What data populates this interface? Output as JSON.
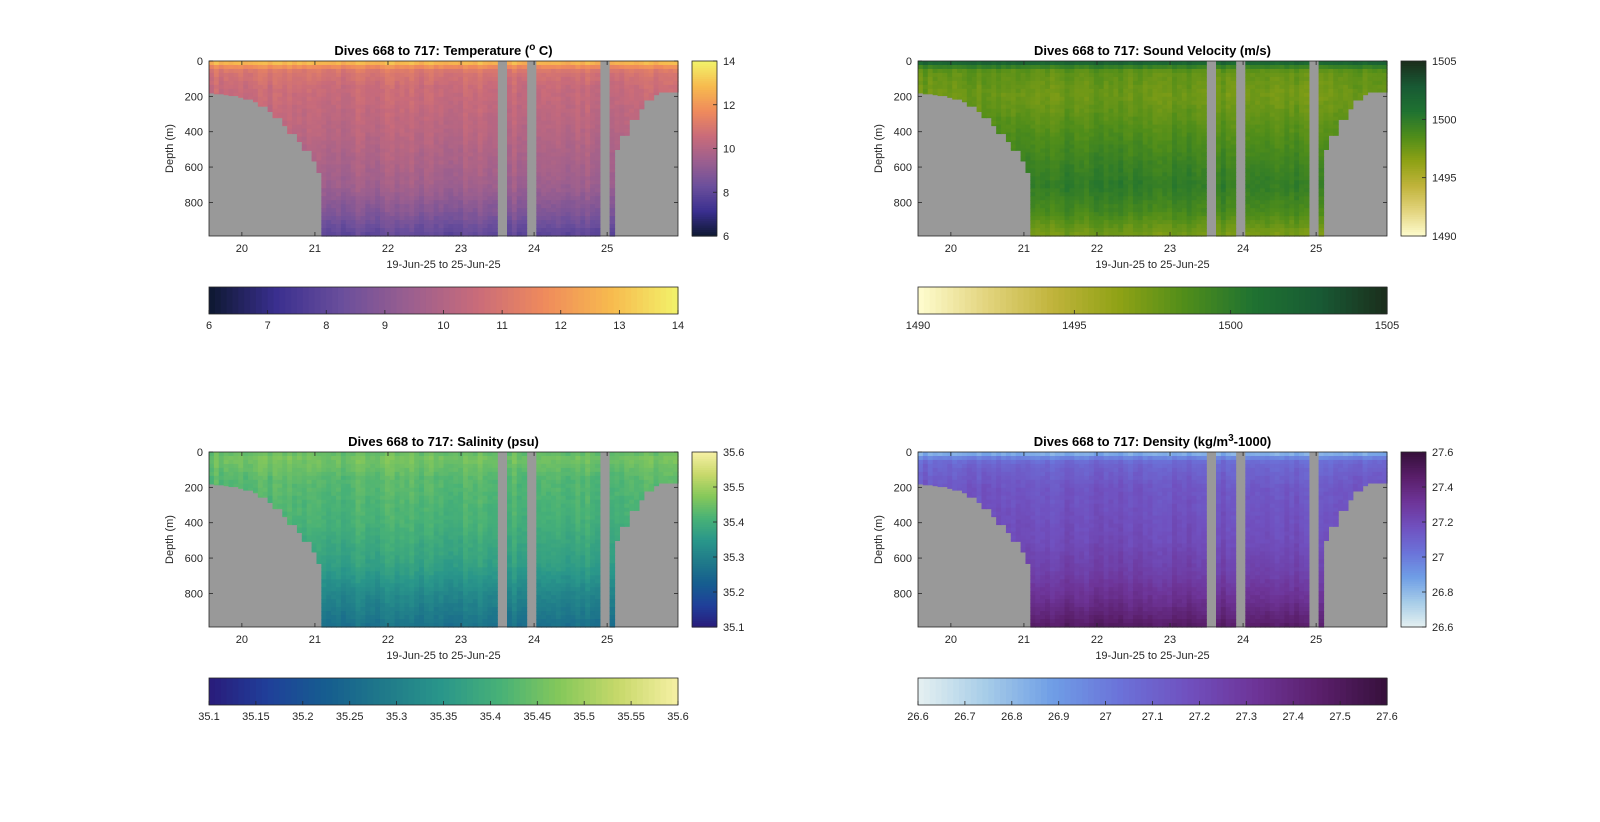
{
  "figure": {
    "background": "#ffffff",
    "land_color": "#999999",
    "plot_background": "#999999"
  },
  "chart_data": [
    {
      "type": "heatmap",
      "id": "temperature",
      "title_prefix": "Dives 668 to 717: Temperature (",
      "title_sup": "o",
      "title_suffix": " C)",
      "xlabel": "19-Jun-25 to 25-Jun-25",
      "ylabel": "Depth (m)",
      "x_ticks": [
        "20",
        "21",
        "22",
        "23",
        "24",
        "25"
      ],
      "x_tick_values": [
        20,
        21,
        22,
        23,
        24,
        25
      ],
      "xlim": [
        19.55,
        25.97
      ],
      "y_ticks": [
        "0",
        "200",
        "400",
        "600",
        "800"
      ],
      "y_tick_values": [
        0,
        200,
        400,
        600,
        800
      ],
      "ylim": [
        0,
        990
      ],
      "colormap": "thermal",
      "colormap_stops": [
        "#0d1830",
        "#3a2f8f",
        "#6b4f9c",
        "#9b5f8f",
        "#c96b7a",
        "#ef8a5c",
        "#f7ba4e",
        "#f2f26a"
      ],
      "vertical_colorbar": {
        "ticks": [
          "6",
          "8",
          "10",
          "12",
          "14"
        ],
        "tick_values": [
          6,
          8,
          10,
          12,
          14
        ],
        "range": [
          6,
          14
        ]
      },
      "horizontal_colorbar": {
        "ticks": [
          "6",
          "7",
          "8",
          "9",
          "10",
          "11",
          "12",
          "13",
          "14"
        ],
        "tick_values": [
          6,
          7,
          8,
          9,
          10,
          11,
          12,
          13,
          14
        ],
        "range": [
          6,
          14
        ]
      },
      "profile": [
        [
          0,
          13.5
        ],
        [
          20,
          12.2
        ],
        [
          60,
          11.0
        ],
        [
          150,
          10.6
        ],
        [
          400,
          10.2
        ],
        [
          700,
          9.6
        ],
        [
          850,
          8.9
        ],
        [
          990,
          8.0
        ]
      ]
    },
    {
      "type": "heatmap",
      "id": "sound_velocity",
      "title_prefix": "Dives 668 to 717: Sound Velocity (m/s)",
      "title_sup": "",
      "title_suffix": "",
      "xlabel": "19-Jun-25 to 25-Jun-25",
      "ylabel": "Depth (m)",
      "x_ticks": [
        "20",
        "21",
        "22",
        "23",
        "24",
        "25"
      ],
      "x_tick_values": [
        20,
        21,
        22,
        23,
        24,
        25
      ],
      "xlim": [
        19.55,
        25.97
      ],
      "y_ticks": [
        "0",
        "200",
        "400",
        "600",
        "800"
      ],
      "y_tick_values": [
        0,
        200,
        400,
        600,
        800
      ],
      "ylim": [
        0,
        990
      ],
      "colormap": "speed",
      "colormap_stops": [
        "#fffdd0",
        "#e3d57f",
        "#c1b43c",
        "#8fa215",
        "#4f8d1a",
        "#1f7231",
        "#185a34",
        "#1b2d1c"
      ],
      "vertical_colorbar": {
        "ticks": [
          "1490",
          "1495",
          "1500",
          "1505"
        ],
        "tick_values": [
          1490,
          1495,
          1500,
          1505
        ],
        "range": [
          1490,
          1505
        ]
      },
      "horizontal_colorbar": {
        "ticks": [
          "1490",
          "1495",
          "1500",
          "1505"
        ],
        "tick_values": [
          1490,
          1495,
          1500,
          1505
        ],
        "range": [
          1490,
          1505
        ]
      },
      "profile": [
        [
          0,
          1503.5
        ],
        [
          20,
          1500.5
        ],
        [
          60,
          1498.0
        ],
        [
          200,
          1497.5
        ],
        [
          450,
          1498.8
        ],
        [
          700,
          1500.0
        ],
        [
          850,
          1499.0
        ],
        [
          990,
          1497.2
        ]
      ]
    },
    {
      "type": "heatmap",
      "id": "salinity",
      "title_prefix": "Dives 668 to 717: Salinity (psu)",
      "title_sup": "",
      "title_suffix": "",
      "xlabel": "19-Jun-25 to 25-Jun-25",
      "ylabel": "Depth (m)",
      "x_ticks": [
        "20",
        "21",
        "22",
        "23",
        "24",
        "25"
      ],
      "x_tick_values": [
        20,
        21,
        22,
        23,
        24,
        25
      ],
      "xlim": [
        19.55,
        25.97
      ],
      "y_ticks": [
        "0",
        "200",
        "400",
        "600",
        "800"
      ],
      "y_tick_values": [
        0,
        200,
        400,
        600,
        800
      ],
      "ylim": [
        0,
        990
      ],
      "colormap": "haline",
      "colormap_stops": [
        "#2a1b7a",
        "#1f3f9a",
        "#155d8f",
        "#1f7a8a",
        "#2a978a",
        "#49b276",
        "#86c85a",
        "#c8d96b",
        "#f6f0a4"
      ],
      "vertical_colorbar": {
        "ticks": [
          "35.1",
          "35.2",
          "35.3",
          "35.4",
          "35.5",
          "35.6"
        ],
        "tick_values": [
          35.1,
          35.2,
          35.3,
          35.4,
          35.5,
          35.6
        ],
        "range": [
          35.1,
          35.6
        ]
      },
      "horizontal_colorbar": {
        "ticks": [
          "35.1",
          "35.15",
          "35.2",
          "35.25",
          "35.3",
          "35.35",
          "35.4",
          "35.45",
          "35.5",
          "35.55",
          "35.6"
        ],
        "tick_values": [
          35.1,
          35.15,
          35.2,
          35.25,
          35.3,
          35.35,
          35.4,
          35.45,
          35.5,
          35.55,
          35.6
        ],
        "range": [
          35.1,
          35.6
        ]
      },
      "profile": [
        [
          0,
          35.44
        ],
        [
          40,
          35.46
        ],
        [
          150,
          35.43
        ],
        [
          400,
          35.41
        ],
        [
          650,
          35.37
        ],
        [
          800,
          35.32
        ],
        [
          990,
          35.27
        ]
      ]
    },
    {
      "type": "heatmap",
      "id": "density",
      "title_prefix": "Dives 668 to 717: Density (kg/m",
      "title_sup": "3",
      "title_suffix": "-1000)",
      "xlabel": "19-Jun-25 to 25-Jun-25",
      "ylabel": "Depth (m)",
      "x_ticks": [
        "20",
        "21",
        "22",
        "23",
        "24",
        "25"
      ],
      "x_tick_values": [
        20,
        21,
        22,
        23,
        24,
        25
      ],
      "xlim": [
        19.55,
        25.97
      ],
      "y_ticks": [
        "0",
        "200",
        "400",
        "600",
        "800"
      ],
      "y_tick_values": [
        0,
        200,
        400,
        600,
        800
      ],
      "ylim": [
        0,
        990
      ],
      "colormap": "dense",
      "colormap_stops": [
        "#e6f1f1",
        "#a7cde8",
        "#6f9ee6",
        "#6b73d9",
        "#7051c0",
        "#6e3599",
        "#5a1f6b",
        "#36103b"
      ],
      "vertical_colorbar": {
        "ticks": [
          "26.6",
          "26.8",
          "27",
          "27.2",
          "27.4",
          "27.6"
        ],
        "tick_values": [
          26.6,
          26.8,
          27.0,
          27.2,
          27.4,
          27.6
        ],
        "range": [
          26.6,
          27.6
        ]
      },
      "horizontal_colorbar": {
        "ticks": [
          "26.6",
          "26.7",
          "26.8",
          "26.9",
          "27",
          "27.1",
          "27.2",
          "27.3",
          "27.4",
          "27.5",
          "27.6"
        ],
        "tick_values": [
          26.6,
          26.7,
          26.8,
          26.9,
          27.0,
          27.1,
          27.2,
          27.3,
          27.4,
          27.5,
          27.6
        ],
        "range": [
          26.6,
          27.6
        ]
      },
      "profile": [
        [
          0,
          26.75
        ],
        [
          20,
          26.92
        ],
        [
          60,
          27.08
        ],
        [
          200,
          27.15
        ],
        [
          500,
          27.2
        ],
        [
          700,
          27.27
        ],
        [
          850,
          27.36
        ],
        [
          990,
          27.48
        ]
      ]
    }
  ],
  "common": {
    "no_data_bands": [
      [
        23.52,
        23.65
      ],
      [
        23.9,
        24.03
      ],
      [
        24.93,
        25.05
      ]
    ],
    "bottom_limit": [
      [
        19.55,
        180
      ],
      [
        19.65,
        185
      ],
      [
        19.75,
        190
      ],
      [
        19.85,
        195
      ],
      [
        19.95,
        205
      ],
      [
        20.05,
        215
      ],
      [
        20.15,
        230
      ],
      [
        20.25,
        255
      ],
      [
        20.35,
        285
      ],
      [
        20.45,
        320
      ],
      [
        20.55,
        365
      ],
      [
        20.65,
        410
      ],
      [
        20.75,
        455
      ],
      [
        20.85,
        505
      ],
      [
        20.95,
        565
      ],
      [
        21.03,
        630
      ],
      [
        21.1,
        990
      ],
      [
        25.07,
        990
      ],
      [
        25.12,
        500
      ],
      [
        25.2,
        420
      ],
      [
        25.3,
        330
      ],
      [
        25.42,
        270
      ],
      [
        25.52,
        220
      ],
      [
        25.62,
        190
      ],
      [
        25.72,
        175
      ],
      [
        25.97,
        170
      ]
    ]
  }
}
